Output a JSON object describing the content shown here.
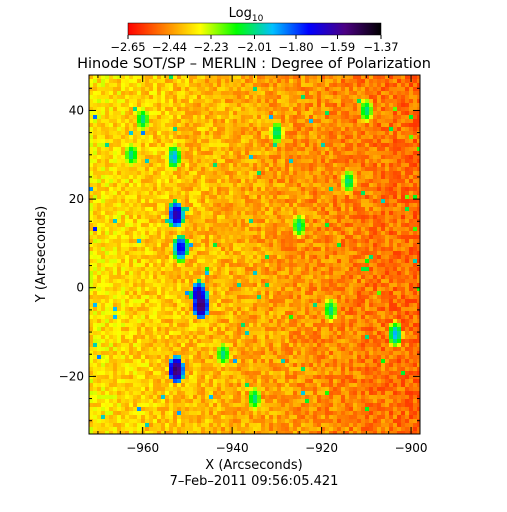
{
  "chart_data": {
    "type": "heatmap",
    "title": "Hinode SOT/SP – MERLIN : Degree of Polarization",
    "xlabel": "X (Arcseconds)",
    "ylabel": "Y (Arcseconds)",
    "xlim": [
      -972,
      -898
    ],
    "ylim": [
      -33,
      48
    ],
    "x_ticks": [
      -960,
      -940,
      -920,
      -900
    ],
    "x_tick_labels": [
      "−960",
      "−940",
      "−920",
      "−900"
    ],
    "y_ticks": [
      -20,
      0,
      20,
      40
    ],
    "y_tick_labels": [
      "−20",
      "0",
      "20",
      "40"
    ],
    "grid": false,
    "colorbar": {
      "label_base": "Log",
      "label_sub": "10",
      "range": [
        -2.65,
        -1.37
      ],
      "ticks": [
        -2.65,
        -2.44,
        -2.23,
        -2.01,
        -1.8,
        -1.59,
        -1.37
      ],
      "tick_labels": [
        "−2.65",
        "−2.44",
        "−2.23",
        "−2.01",
        "−1.80",
        "−1.59",
        "−1.37"
      ],
      "colors": [
        "#ff0000",
        "#ff7f00",
        "#ffff00",
        "#00ff00",
        "#00c0ff",
        "#0000ff",
        "#4b0082",
        "#000000"
      ]
    },
    "background_level": -2.5,
    "features": [
      {
        "x": -952.5,
        "y": 16.5,
        "value": -1.6
      },
      {
        "x": -951.5,
        "y": 9.0,
        "value": -1.7
      },
      {
        "x": -947.0,
        "y": -4.0,
        "value": -1.5
      },
      {
        "x": -947.5,
        "y": -1.5,
        "value": -1.6
      },
      {
        "x": -952.5,
        "y": -18.5,
        "value": -1.5
      },
      {
        "x": -960.0,
        "y": 38.0,
        "value": -2.0
      },
      {
        "x": -962.5,
        "y": 30.0,
        "value": -2.0
      },
      {
        "x": -953.0,
        "y": 29.5,
        "value": -1.9
      },
      {
        "x": -914.0,
        "y": 24.0,
        "value": -2.0
      },
      {
        "x": -903.5,
        "y": -10.5,
        "value": -1.9
      },
      {
        "x": -930.0,
        "y": 35.0,
        "value": -2.0
      },
      {
        "x": -925.0,
        "y": 14.0,
        "value": -2.0
      },
      {
        "x": -918.0,
        "y": -5.0,
        "value": -2.0
      },
      {
        "x": -935.0,
        "y": -25.0,
        "value": -2.0
      },
      {
        "x": -910.0,
        "y": 40.0,
        "value": -2.0
      },
      {
        "x": -942.0,
        "y": -15.0,
        "value": -2.0
      }
    ],
    "footer_text": "7–Feb–2011 09:56:05.421"
  }
}
